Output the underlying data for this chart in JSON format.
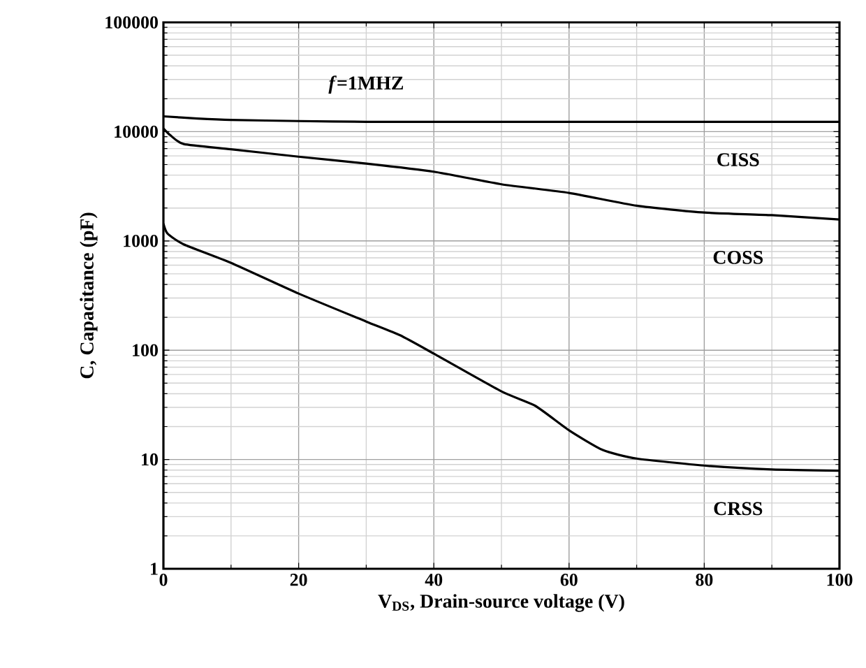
{
  "chart_data": {
    "type": "line",
    "xlabel": "V$_{DS}$, Drain-source voltage (V)",
    "ylabel": "C, Capacitance (pF)",
    "series": [
      {
        "name": "CISS",
        "color": "#000000",
        "x": [
          0,
          5,
          10,
          20,
          30,
          40,
          60,
          80,
          100
        ],
        "values": [
          13800,
          13200,
          12800,
          12500,
          12300,
          12300,
          12300,
          12300,
          12300
        ]
      },
      {
        "name": "COSS",
        "color": "#000000",
        "x": [
          0,
          1,
          3,
          10,
          20,
          30,
          40,
          50,
          60,
          70,
          80,
          90,
          100
        ],
        "values": [
          10700,
          9300,
          7700,
          6900,
          5900,
          5100,
          4300,
          3300,
          2750,
          2100,
          1820,
          1720,
          1570
        ]
      },
      {
        "name": "CRSS",
        "color": "#000000",
        "x": [
          0,
          0.6,
          3,
          10,
          20,
          30,
          35,
          40,
          50,
          55,
          60,
          65,
          70,
          80,
          90,
          100
        ],
        "values": [
          1440,
          1170,
          930,
          630,
          330,
          183,
          137,
          93,
          42,
          31,
          18.5,
          12.2,
          10.2,
          8.8,
          8.1,
          7.9
        ]
      }
    ],
    "xlim": [
      0,
      100
    ],
    "xticks": [
      0,
      20,
      40,
      60,
      80,
      100
    ],
    "ylim": [
      1,
      100000
    ],
    "yticks": [
      1,
      10,
      100,
      1000,
      10000,
      100000
    ],
    "log": "y",
    "grid": true,
    "line_style": "solid",
    "annotations": [
      "*f*=1MHZ"
    ]
  }
}
